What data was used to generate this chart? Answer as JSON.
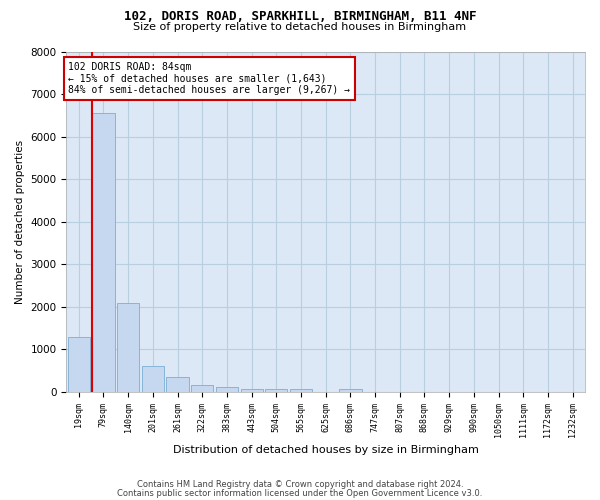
{
  "title1": "102, DORIS ROAD, SPARKHILL, BIRMINGHAM, B11 4NF",
  "title2": "Size of property relative to detached houses in Birmingham",
  "xlabel": "Distribution of detached houses by size in Birmingham",
  "ylabel": "Number of detached properties",
  "categories": [
    "19sqm",
    "79sqm",
    "140sqm",
    "201sqm",
    "261sqm",
    "322sqm",
    "383sqm",
    "443sqm",
    "504sqm",
    "565sqm",
    "625sqm",
    "686sqm",
    "747sqm",
    "807sqm",
    "868sqm",
    "929sqm",
    "990sqm",
    "1050sqm",
    "1111sqm",
    "1172sqm",
    "1232sqm"
  ],
  "values": [
    1300,
    6550,
    2100,
    620,
    340,
    160,
    110,
    75,
    70,
    65,
    0,
    70,
    0,
    0,
    0,
    0,
    0,
    0,
    0,
    0,
    0
  ],
  "bar_color": "#c5d8f0",
  "bar_edge_color": "#7bafd4",
  "annotation_title": "102 DORIS ROAD: 84sqm",
  "annotation_line1": "← 15% of detached houses are smaller (1,643)",
  "annotation_line2": "84% of semi-detached houses are larger (9,267) →",
  "annotation_box_facecolor": "#ffffff",
  "annotation_border_color": "#cc0000",
  "red_line_bar_index": 1,
  "ylim": [
    0,
    8000
  ],
  "yticks": [
    0,
    1000,
    2000,
    3000,
    4000,
    5000,
    6000,
    7000,
    8000
  ],
  "grid_color": "#b8cfe0",
  "background_color": "#dce8f5",
  "footer1": "Contains HM Land Registry data © Crown copyright and database right 2024.",
  "footer2": "Contains public sector information licensed under the Open Government Licence v3.0."
}
